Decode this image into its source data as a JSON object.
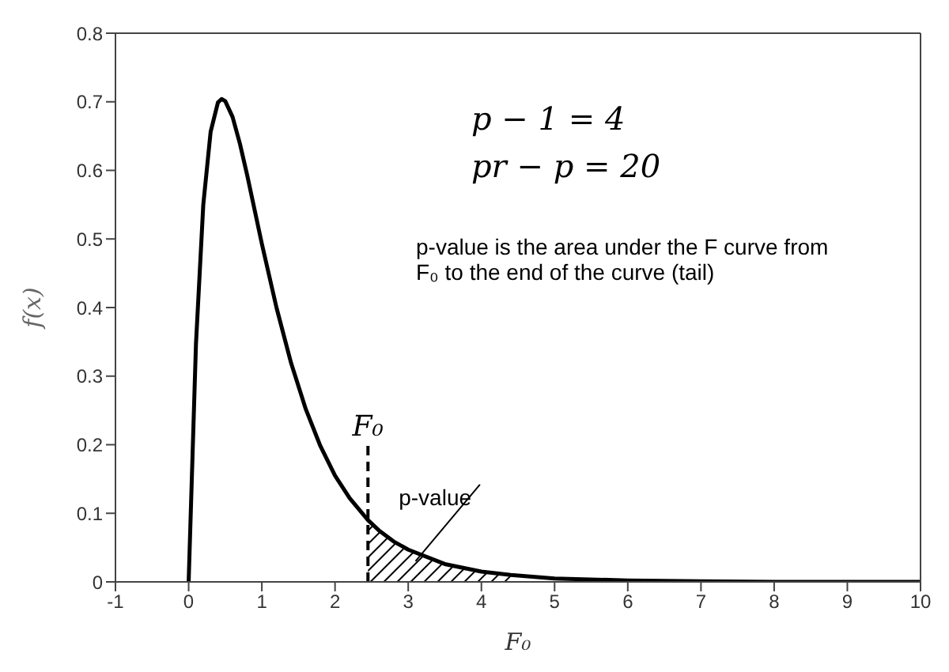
{
  "chart_data": {
    "type": "line",
    "xlabel": "F₀",
    "ylabel": "f(x)",
    "xlim": [
      -1,
      10
    ],
    "xticks": [
      -1,
      0,
      1,
      2,
      3,
      4,
      5,
      6,
      7,
      8,
      9,
      10
    ],
    "ylim": [
      0,
      0.8
    ],
    "yticks": [
      0,
      0.1,
      0.2,
      0.3,
      0.4,
      0.5,
      0.6,
      0.7,
      0.8
    ],
    "grid": false,
    "legend": false,
    "marker": "none",
    "series": [
      {
        "color": "#000000",
        "x": [
          0,
          0.1,
          0.2,
          0.3,
          0.4,
          0.45,
          0.5,
          0.6,
          0.7,
          0.8,
          1,
          1.2,
          1.4,
          1.6,
          1.8,
          2,
          2.2,
          2.45,
          2.6,
          2.8,
          3,
          3.5,
          4,
          4.4,
          5,
          6,
          7,
          8,
          10
        ],
        "values": [
          0,
          0.347,
          0.55,
          0.656,
          0.699,
          0.704,
          0.701,
          0.678,
          0.639,
          0.593,
          0.493,
          0.4,
          0.319,
          0.252,
          0.198,
          0.155,
          0.122,
          0.09,
          0.075,
          0.059,
          0.047,
          0.026,
          0.015,
          0.01,
          0.005,
          0.002,
          0.001,
          0,
          0
        ]
      },
      {
        "type": "area",
        "color": "#000000",
        "x": [
          2.45,
          2.6,
          2.8,
          3,
          3.5,
          4,
          4.4
        ],
        "values": [
          0.09,
          0.075,
          0.059,
          0.047,
          0.026,
          0.015,
          0.01
        ]
      }
    ],
    "ref_lines": [
      {
        "axis": "x",
        "value": 2.45,
        "label": "F₀",
        "line_style": "dashed"
      }
    ],
    "annotations": [
      "p − 1 = 4",
      "pr − p = 20",
      "p-value is the area under the F curve from F₀ to the end of the curve (tail)",
      {
        "text": "p-value",
        "x": 3.1,
        "y": 0.03
      }
    ]
  }
}
